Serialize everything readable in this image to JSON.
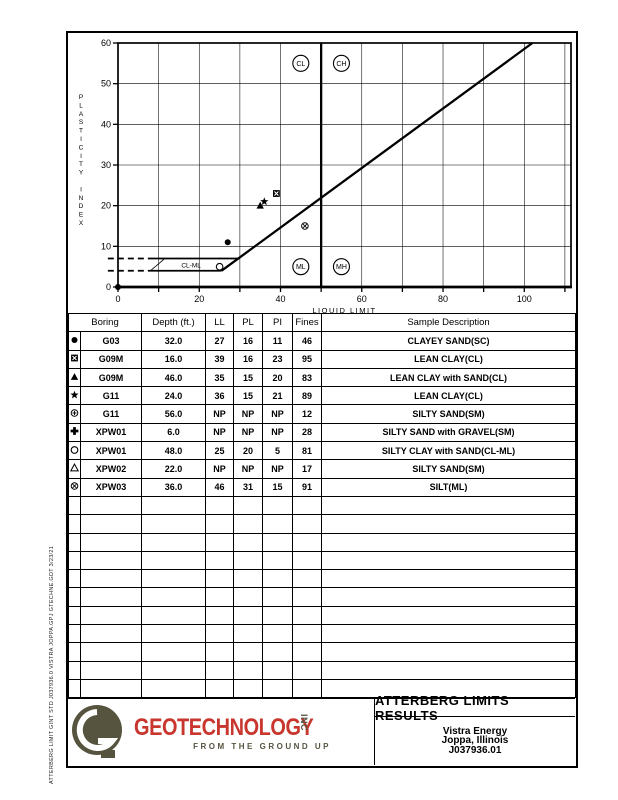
{
  "page": {
    "side_text": "ATTERBERG LIMIT GINT STD J037936.0   VISTRA JOPPA.GPJ  GTECHNE.GDT  3/23/21"
  },
  "chart_data": {
    "type": "scatter",
    "title": "",
    "xlabel": "LIQUID LIMIT",
    "ylabel": "PLASTICITY INDEX",
    "xlim": [
      0,
      111.5
    ],
    "ylim": [
      0,
      60
    ],
    "grid_step": 10,
    "x_tick_labels": [
      0,
      20,
      40,
      60,
      80,
      100
    ],
    "y_tick_labels": [
      0,
      10,
      20,
      30,
      40,
      50,
      60
    ],
    "grid": "on",
    "a_line": {
      "from_ll": 25.5,
      "from_pi": 4,
      "to_ll": 102,
      "to_pi": 60
    },
    "vertical_line_ll": 50,
    "cl_ml_zone": {
      "label": "CL-ML",
      "pi_low": 4,
      "pi_high": 7,
      "dash_start_ll": -2.5,
      "solid_start_ll": 8,
      "low_end_ll": 25.5,
      "high_end_ll": 29.6,
      "label_ll": 18,
      "label_pi": 5.3
    },
    "zone_labels": [
      {
        "text": "CL",
        "ll": 45,
        "pi": 55
      },
      {
        "text": "CH",
        "ll": 55,
        "pi": 55
      },
      {
        "text": "ML",
        "ll": 45,
        "pi": 5
      },
      {
        "text": "MH",
        "ll": 55,
        "pi": 5
      }
    ],
    "points": [
      {
        "symbol": "filled-circle",
        "ll": 27,
        "pi": 11
      },
      {
        "symbol": "boxed-x",
        "ll": 39,
        "pi": 23
      },
      {
        "symbol": "filled-triangle",
        "ll": 35,
        "pi": 20
      },
      {
        "symbol": "star",
        "ll": 36,
        "pi": 21
      },
      {
        "symbol": "circle-x",
        "ll": 46,
        "pi": 15
      },
      {
        "symbol": "open-circle",
        "ll": 25,
        "pi": 5
      },
      {
        "symbol": "filled-circle",
        "ll": 0,
        "pi": 0
      }
    ]
  },
  "table": {
    "headers": [
      "Boring",
      "Depth (ft.)",
      "LL",
      "PL",
      "PI",
      "Fines",
      "Sample Description"
    ],
    "rows": [
      {
        "symbol": "filled-circle",
        "boring": "G03",
        "depth": "32.0",
        "ll": "27",
        "pl": "16",
        "pi": "11",
        "fines": "46",
        "description": "CLAYEY SAND(SC)"
      },
      {
        "symbol": "boxed-x",
        "boring": "G09M",
        "depth": "16.0",
        "ll": "39",
        "pl": "16",
        "pi": "23",
        "fines": "95",
        "description": "LEAN CLAY(CL)"
      },
      {
        "symbol": "filled-triangle",
        "boring": "G09M",
        "depth": "46.0",
        "ll": "35",
        "pl": "15",
        "pi": "20",
        "fines": "83",
        "description": "LEAN CLAY with SAND(CL)"
      },
      {
        "symbol": "star",
        "boring": "G11",
        "depth": "24.0",
        "ll": "36",
        "pl": "15",
        "pi": "21",
        "fines": "89",
        "description": "LEAN CLAY(CL)"
      },
      {
        "symbol": "circle-plus",
        "boring": "G11",
        "depth": "56.0",
        "ll": "NP",
        "pl": "NP",
        "pi": "NP",
        "fines": "12",
        "description": "SILTY SAND(SM)"
      },
      {
        "symbol": "filled-plus",
        "boring": "XPW01",
        "depth": "6.0",
        "ll": "NP",
        "pl": "NP",
        "pi": "NP",
        "fines": "28",
        "description": "SILTY SAND with GRAVEL(SM)"
      },
      {
        "symbol": "open-circle",
        "boring": "XPW01",
        "depth": "48.0",
        "ll": "25",
        "pl": "20",
        "pi": "5",
        "fines": "81",
        "description": "SILTY CLAY with SAND(CL-ML)"
      },
      {
        "symbol": "open-triangle",
        "boring": "XPW02",
        "depth": "22.0",
        "ll": "NP",
        "pl": "NP",
        "pi": "NP",
        "fines": "17",
        "description": "SILTY SAND(SM)"
      },
      {
        "symbol": "circle-x",
        "boring": "XPW03",
        "depth": "36.0",
        "ll": "46",
        "pl": "31",
        "pi": "15",
        "fines": "91",
        "description": "SILT(ML)"
      }
    ],
    "empty_rows": 11
  },
  "title_block": {
    "title": "ATTERBERG LIMITS RESULTS",
    "client": "Vistra Energy",
    "location": "Joppa, Illinois",
    "project_number": "J037936.01",
    "logo": {
      "name": "GEOTECHNOLOGY",
      "suffix": "INC",
      "tagline": "FROM THE GROUND UP",
      "brand_red": "#c8362e",
      "brand_olive": "#56543f"
    }
  }
}
